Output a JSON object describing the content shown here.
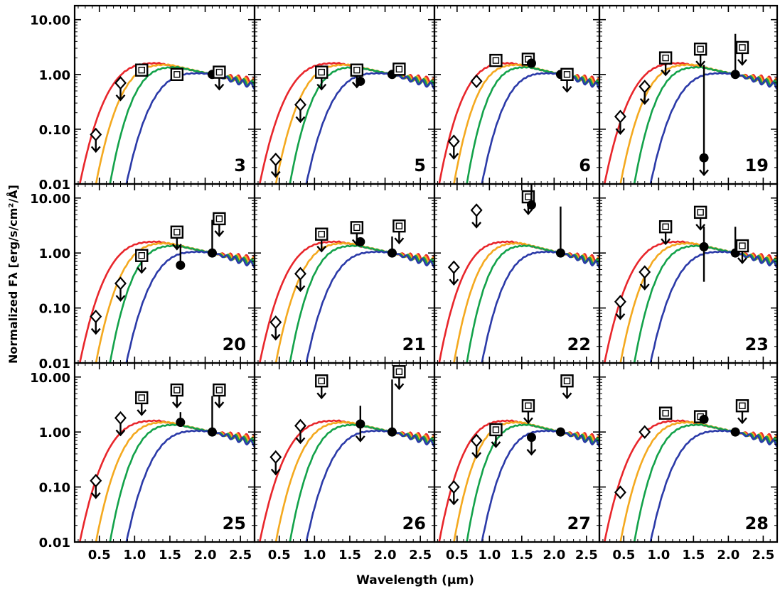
{
  "figure": {
    "ylabel": "Normalized Fλ [erg/s/cm²/Å]",
    "xlabel": "Wavelength (μm)"
  },
  "chart_data": {
    "type": "scatter",
    "layout": "4x3 grid of panels sharing axes",
    "xlabel": "Wavelength (μm)",
    "ylabel": "Normalized Fλ [erg/s/cm²/Å]",
    "xlim": [
      0.15,
      2.7
    ],
    "ylim": [
      0.01,
      18
    ],
    "yscale": "log",
    "x_ticks": [
      "0.5",
      "1.0",
      "1.5",
      "2.0",
      "2.5"
    ],
    "y_ticks": [
      "0.01",
      "0.10",
      "1.00",
      "10.00"
    ],
    "model_curve_colors": [
      "#e8262b",
      "#f4a91f",
      "#13a24a",
      "#2b3aa8"
    ],
    "model_curves_note": "four normalized stellar/brown-dwarf template spectra (red, orange, green, blue), each normalized to 1.0 at 2.1 μm",
    "panels": [
      {
        "id": "3",
        "points": [
          {
            "marker": "diamond",
            "x": 0.45,
            "y": 0.08,
            "upper_limit": true
          },
          {
            "marker": "diamond",
            "x": 0.8,
            "y": 0.7,
            "upper_limit": true
          },
          {
            "marker": "square",
            "x": 1.1,
            "y": 1.2,
            "upper_limit": false
          },
          {
            "marker": "square",
            "x": 1.6,
            "y": 1.0,
            "upper_limit": false
          },
          {
            "marker": "circle",
            "x": 2.1,
            "y": 1.0,
            "upper_limit": false
          },
          {
            "marker": "square",
            "x": 2.2,
            "y": 1.1,
            "upper_limit": true
          }
        ]
      },
      {
        "id": "5",
        "points": [
          {
            "marker": "diamond",
            "x": 0.45,
            "y": 0.028,
            "upper_limit": true
          },
          {
            "marker": "diamond",
            "x": 0.8,
            "y": 0.28,
            "upper_limit": true
          },
          {
            "marker": "square",
            "x": 1.1,
            "y": 1.1,
            "upper_limit": true
          },
          {
            "marker": "square",
            "x": 1.6,
            "y": 1.2,
            "upper_limit": true
          },
          {
            "marker": "circle",
            "x": 1.65,
            "y": 0.75,
            "upper_limit": false
          },
          {
            "marker": "circle",
            "x": 2.1,
            "y": 1.0,
            "upper_limit": false
          },
          {
            "marker": "square",
            "x": 2.2,
            "y": 1.25,
            "upper_limit": false
          }
        ]
      },
      {
        "id": "6",
        "points": [
          {
            "marker": "diamond",
            "x": 0.45,
            "y": 0.06,
            "upper_limit": true
          },
          {
            "marker": "diamond",
            "x": 0.8,
            "y": 0.75,
            "upper_limit": false
          },
          {
            "marker": "square",
            "x": 1.1,
            "y": 1.8,
            "upper_limit": false
          },
          {
            "marker": "square",
            "x": 1.6,
            "y": 1.9,
            "upper_limit": false
          },
          {
            "marker": "circle",
            "x": 1.65,
            "y": 1.6,
            "upper_limit": false
          },
          {
            "marker": "circle",
            "x": 2.1,
            "y": 1.0,
            "upper_limit": false
          },
          {
            "marker": "square",
            "x": 2.2,
            "y": 1.0,
            "upper_limit": true
          }
        ]
      },
      {
        "id": "19",
        "points": [
          {
            "marker": "diamond",
            "x": 0.45,
            "y": 0.17,
            "upper_limit": true
          },
          {
            "marker": "diamond",
            "x": 0.8,
            "y": 0.6,
            "upper_limit": true
          },
          {
            "marker": "square",
            "x": 1.1,
            "y": 2.0,
            "upper_limit": true
          },
          {
            "marker": "square",
            "x": 1.6,
            "y": 2.9,
            "upper_limit": true
          },
          {
            "marker": "circle",
            "x": 1.65,
            "y": 0.03,
            "upper_limit": true,
            "err_hi": 1.5
          },
          {
            "marker": "circle",
            "x": 2.1,
            "y": 1.0,
            "upper_limit": false,
            "err_hi": 5.5
          },
          {
            "marker": "square",
            "x": 2.2,
            "y": 3.1,
            "upper_limit": true
          }
        ]
      },
      {
        "id": "20",
        "points": [
          {
            "marker": "diamond",
            "x": 0.45,
            "y": 0.07,
            "upper_limit": true
          },
          {
            "marker": "diamond",
            "x": 0.8,
            "y": 0.28,
            "upper_limit": true
          },
          {
            "marker": "square",
            "x": 1.1,
            "y": 0.9,
            "upper_limit": true
          },
          {
            "marker": "square",
            "x": 1.6,
            "y": 2.4,
            "upper_limit": true
          },
          {
            "marker": "circle",
            "x": 1.65,
            "y": 0.6,
            "upper_limit": false,
            "err_hi": 1.4
          },
          {
            "marker": "circle",
            "x": 2.1,
            "y": 1.0,
            "upper_limit": false,
            "err_hi": 4.0
          },
          {
            "marker": "square",
            "x": 2.2,
            "y": 4.2,
            "upper_limit": true
          }
        ]
      },
      {
        "id": "21",
        "points": [
          {
            "marker": "diamond",
            "x": 0.45,
            "y": 0.055,
            "upper_limit": true
          },
          {
            "marker": "diamond",
            "x": 0.8,
            "y": 0.42,
            "upper_limit": true
          },
          {
            "marker": "square",
            "x": 1.1,
            "y": 2.2,
            "upper_limit": true
          },
          {
            "marker": "square",
            "x": 1.6,
            "y": 2.9,
            "upper_limit": true
          },
          {
            "marker": "circle",
            "x": 1.65,
            "y": 1.6,
            "upper_limit": false
          },
          {
            "marker": "circle",
            "x": 2.1,
            "y": 1.0,
            "upper_limit": false,
            "err_hi": 2.0
          },
          {
            "marker": "square",
            "x": 2.2,
            "y": 3.1,
            "upper_limit": true
          }
        ]
      },
      {
        "id": "22",
        "points": [
          {
            "marker": "diamond",
            "x": 0.45,
            "y": 0.55,
            "upper_limit": true
          },
          {
            "marker": "diamond",
            "x": 0.8,
            "y": 6.0,
            "upper_limit": true
          },
          {
            "marker": "square",
            "x": 1.6,
            "y": 10.5,
            "upper_limit": true
          },
          {
            "marker": "circle",
            "x": 1.65,
            "y": 7.5,
            "upper_limit": false,
            "err_hi": 18
          },
          {
            "marker": "circle",
            "x": 2.1,
            "y": 1.0,
            "upper_limit": false,
            "err_hi": 7.0
          }
        ]
      },
      {
        "id": "23",
        "points": [
          {
            "marker": "diamond",
            "x": 0.45,
            "y": 0.13,
            "upper_limit": true
          },
          {
            "marker": "diamond",
            "x": 0.8,
            "y": 0.45,
            "upper_limit": true
          },
          {
            "marker": "square",
            "x": 1.1,
            "y": 3.0,
            "upper_limit": true
          },
          {
            "marker": "square",
            "x": 1.6,
            "y": 5.5,
            "upper_limit": true
          },
          {
            "marker": "circle",
            "x": 1.65,
            "y": 1.3,
            "upper_limit": false,
            "err_lo": 0.3,
            "err_hi": 3.0
          },
          {
            "marker": "circle",
            "x": 2.1,
            "y": 1.0,
            "upper_limit": false,
            "err_hi": 3.0
          },
          {
            "marker": "square",
            "x": 2.2,
            "y": 1.35,
            "upper_limit": true
          }
        ]
      },
      {
        "id": "25",
        "points": [
          {
            "marker": "diamond",
            "x": 0.45,
            "y": 0.13,
            "upper_limit": true
          },
          {
            "marker": "diamond",
            "x": 0.8,
            "y": 1.8,
            "upper_limit": true
          },
          {
            "marker": "square",
            "x": 1.1,
            "y": 4.2,
            "upper_limit": true
          },
          {
            "marker": "square",
            "x": 1.6,
            "y": 5.8,
            "upper_limit": true
          },
          {
            "marker": "circle",
            "x": 1.65,
            "y": 1.5,
            "upper_limit": false,
            "err_hi": 2.3
          },
          {
            "marker": "circle",
            "x": 2.1,
            "y": 1.0,
            "upper_limit": false,
            "err_hi": 4.5
          },
          {
            "marker": "square",
            "x": 2.2,
            "y": 5.8,
            "upper_limit": true
          }
        ]
      },
      {
        "id": "26",
        "points": [
          {
            "marker": "diamond",
            "x": 0.45,
            "y": 0.35,
            "upper_limit": true
          },
          {
            "marker": "diamond",
            "x": 0.8,
            "y": 1.3,
            "upper_limit": true
          },
          {
            "marker": "square",
            "x": 1.1,
            "y": 8.5,
            "upper_limit": true
          },
          {
            "marker": "circle",
            "x": 1.65,
            "y": 1.4,
            "upper_limit": true,
            "err_hi": 3.0
          },
          {
            "marker": "circle",
            "x": 2.1,
            "y": 1.0,
            "upper_limit": false,
            "err_hi": 9.0
          },
          {
            "marker": "square",
            "x": 2.2,
            "y": 12.5,
            "upper_limit": true
          }
        ]
      },
      {
        "id": "27",
        "points": [
          {
            "marker": "diamond",
            "x": 0.45,
            "y": 0.1,
            "upper_limit": true
          },
          {
            "marker": "diamond",
            "x": 0.8,
            "y": 0.7,
            "upper_limit": true
          },
          {
            "marker": "square",
            "x": 1.1,
            "y": 1.1,
            "upper_limit": true
          },
          {
            "marker": "square",
            "x": 1.6,
            "y": 3.0,
            "upper_limit": true
          },
          {
            "marker": "circle",
            "x": 1.65,
            "y": 0.8,
            "upper_limit": true
          },
          {
            "marker": "circle",
            "x": 2.1,
            "y": 1.0,
            "upper_limit": false
          },
          {
            "marker": "square",
            "x": 2.2,
            "y": 8.5,
            "upper_limit": true
          }
        ]
      },
      {
        "id": "28",
        "points": [
          {
            "marker": "diamond",
            "x": 0.45,
            "y": 0.08,
            "upper_limit": false
          },
          {
            "marker": "diamond",
            "x": 0.8,
            "y": 1.0,
            "upper_limit": false
          },
          {
            "marker": "square",
            "x": 1.1,
            "y": 2.2,
            "upper_limit": false
          },
          {
            "marker": "square",
            "x": 1.6,
            "y": 1.9,
            "upper_limit": false
          },
          {
            "marker": "circle",
            "x": 1.65,
            "y": 1.7,
            "upper_limit": false
          },
          {
            "marker": "circle",
            "x": 2.1,
            "y": 1.0,
            "upper_limit": false
          },
          {
            "marker": "square",
            "x": 2.2,
            "y": 3.0,
            "upper_limit": true
          }
        ]
      }
    ]
  }
}
